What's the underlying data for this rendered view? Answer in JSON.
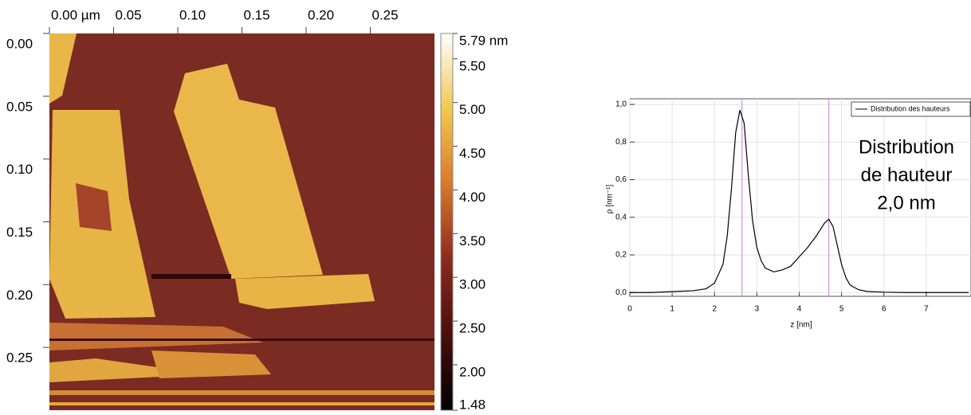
{
  "chart_data": [
    {
      "type": "image",
      "xlim": [
        0,
        0.3
      ],
      "xticks": [
        {
          "value": 0,
          "label": "0.00 µm"
        },
        0.05,
        {
          "value": 0.1,
          "label": "0.10"
        },
        0.15,
        {
          "value": 0.2,
          "label": "0.20"
        },
        0.25
      ],
      "ylim": [
        0,
        0.3
      ],
      "y_inverted": true,
      "yticks": [
        {
          "value": 0,
          "label": "0.00"
        },
        0.05,
        {
          "value": 0.1,
          "label": "0.10"
        },
        0.15,
        {
          "value": 0.2,
          "label": "0.20"
        },
        0.25
      ],
      "clim": [
        1.48,
        5.79
      ],
      "cticks": [
        {
          "value": 5.79,
          "label": "5.79 nm"
        },
        {
          "value": 5.5,
          "label": "5.50"
        },
        {
          "value": 5,
          "label": "5.00"
        },
        {
          "value": 4.5,
          "label": "4.50"
        },
        {
          "value": 4,
          "label": "4.00"
        },
        {
          "value": 3.5,
          "label": "3.50"
        },
        {
          "value": 3,
          "label": "3.00"
        },
        {
          "value": 2.5,
          "label": "2.50"
        },
        {
          "value": 2,
          "label": "2.00"
        },
        1.48
      ]
    },
    {
      "type": "line",
      "x_label": "z [nm]",
      "y_label": "ρ [nm⁻¹]",
      "xlim": [
        0,
        8
      ],
      "xticks": [
        0,
        1,
        2,
        3,
        4,
        5,
        6,
        7
      ],
      "ylim": [
        -0.02,
        1.03
      ],
      "yticks": [
        {
          "value": 0,
          "label": "0,0"
        },
        {
          "value": 0.2,
          "label": "0,2"
        },
        {
          "value": 0.4,
          "label": "0,4"
        },
        {
          "value": 0.6,
          "label": "0,6"
        },
        {
          "value": 0.8,
          "label": "0,8"
        },
        {
          "value": 1,
          "label": "1,0"
        }
      ],
      "grid": true,
      "legend": "top-right",
      "markers": [
        2.65,
        4.7
      ],
      "marker_color": "#c77fd6",
      "annotation": [
        "Distribution",
        "de hauteur",
        "2,0 nm"
      ],
      "x": [
        0,
        0.5,
        1,
        1.5,
        1.8,
        2.0,
        2.2,
        2.3,
        2.4,
        2.5,
        2.6,
        2.7,
        2.8,
        2.9,
        3.0,
        3.1,
        3.2,
        3.4,
        3.6,
        3.8,
        4.0,
        4.2,
        4.4,
        4.6,
        4.7,
        4.8,
        4.9,
        5.0,
        5.1,
        5.2,
        5.4,
        5.6,
        6.0,
        6.5,
        7.0,
        7.5,
        8.0
      ],
      "series": [
        {
          "name": "Distribution des hauteurs",
          "color": "#000000",
          "values": [
            0,
            0,
            0.005,
            0.01,
            0.02,
            0.05,
            0.15,
            0.3,
            0.55,
            0.85,
            0.97,
            0.9,
            0.62,
            0.38,
            0.24,
            0.17,
            0.13,
            0.11,
            0.12,
            0.14,
            0.19,
            0.24,
            0.3,
            0.37,
            0.39,
            0.35,
            0.25,
            0.15,
            0.08,
            0.04,
            0.015,
            0.006,
            0.002,
            0,
            0,
            0,
            0
          ]
        }
      ]
    }
  ]
}
